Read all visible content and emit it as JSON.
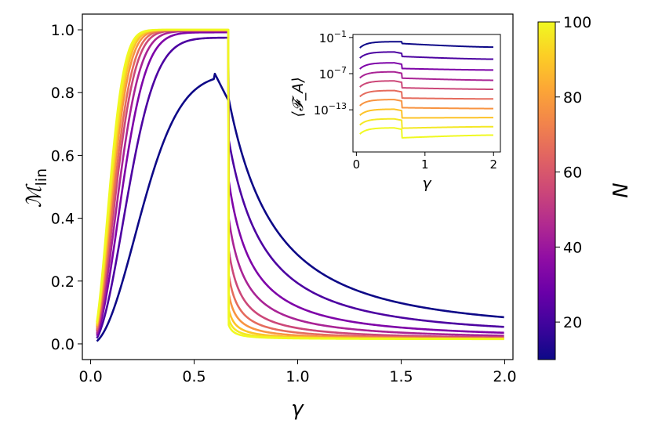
{
  "chart_data": [
    {
      "type": "line",
      "panel": "main",
      "xlabel": "γ",
      "ylabel_main": "ℳ",
      "ylabel_sub": "lin",
      "xlim": [
        -0.04,
        2.04
      ],
      "ylim": [
        -0.05,
        1.05
      ],
      "xticks": [
        0.0,
        0.5,
        1.0,
        1.5,
        2.0
      ],
      "xtick_labels": [
        "0.0",
        "0.5",
        "1.0",
        "1.5",
        "2.0"
      ],
      "yticks": [
        0.0,
        0.2,
        0.4,
        0.6,
        0.8,
        1.0
      ],
      "ytick_labels": [
        "0.0",
        "0.2",
        "0.4",
        "0.6",
        "0.8",
        "1.0"
      ],
      "critical_gamma": 0.667,
      "series": [
        {
          "name": "N=10",
          "peak": 0.86,
          "rise_width": 0.3,
          "drop_to": 0.78,
          "decay_rate": 4.5,
          "tail": 0.035
        },
        {
          "name": "N=20",
          "peak": 0.975,
          "rise_width": 0.22,
          "drop_to": 0.65,
          "decay_rate": 6.0,
          "tail": 0.022
        },
        {
          "name": "N=30",
          "peak": 0.992,
          "rise_width": 0.185,
          "drop_to": 0.52,
          "decay_rate": 9.0,
          "tail": 0.018
        },
        {
          "name": "N=40",
          "peak": 0.996,
          "rise_width": 0.165,
          "drop_to": 0.4,
          "decay_rate": 12.0,
          "tail": 0.016
        },
        {
          "name": "N=50",
          "peak": 0.998,
          "rise_width": 0.15,
          "drop_to": 0.3,
          "decay_rate": 16.0,
          "tail": 0.015
        },
        {
          "name": "N=60",
          "peak": 0.999,
          "rise_width": 0.14,
          "drop_to": 0.22,
          "decay_rate": 20.0,
          "tail": 0.015
        },
        {
          "name": "N=70",
          "peak": 0.999,
          "rise_width": 0.13,
          "drop_to": 0.16,
          "decay_rate": 25.0,
          "tail": 0.015
        },
        {
          "name": "N=80",
          "peak": 1.0,
          "rise_width": 0.123,
          "drop_to": 0.11,
          "decay_rate": 30.0,
          "tail": 0.015
        },
        {
          "name": "N=90",
          "peak": 1.0,
          "rise_width": 0.117,
          "drop_to": 0.08,
          "decay_rate": 35.0,
          "tail": 0.015
        },
        {
          "name": "N=100",
          "peak": 1.0,
          "rise_width": 0.112,
          "drop_to": 0.06,
          "decay_rate": 40.0,
          "tail": 0.015
        }
      ]
    },
    {
      "type": "line",
      "panel": "inset",
      "xlabel": "γ",
      "ylabel": "⟨𝓕_A⟩",
      "yscale": "log",
      "xlim": [
        -0.05,
        2.1
      ],
      "log10_ylim": [
        -20,
        -0.5
      ],
      "xticks": [
        0,
        1,
        2
      ],
      "xtick_labels": [
        "0",
        "1",
        "2"
      ],
      "ytick_log10": [
        -1,
        -7,
        -13
      ],
      "ytick_bases": [
        "10",
        "10",
        "10"
      ],
      "ytick_exponents": [
        "−1",
        "−7",
        "−13"
      ],
      "series": [
        {
          "name": "N=10",
          "peak_log10": -1.7,
          "jump": 0.0,
          "end_log10": -2.6
        },
        {
          "name": "N=20",
          "peak_log10": -3.4,
          "jump": 0.5,
          "end_log10": -4.6
        },
        {
          "name": "N=30",
          "peak_log10": -5.2,
          "jump": 0.7,
          "end_log10": -6.4
        },
        {
          "name": "N=40",
          "peak_log10": -6.7,
          "jump": 0.8,
          "end_log10": -8.1
        },
        {
          "name": "N=50",
          "peak_log10": -8.2,
          "jump": 0.9,
          "end_log10": -9.6
        },
        {
          "name": "N=60",
          "peak_log10": -9.8,
          "jump": 1.0,
          "end_log10": -11.2
        },
        {
          "name": "N=70",
          "peak_log10": -11.3,
          "jump": 1.1,
          "end_log10": -12.8
        },
        {
          "name": "N=80",
          "peak_log10": -12.9,
          "jump": 1.2,
          "end_log10": -14.3
        },
        {
          "name": "N=90",
          "peak_log10": -14.5,
          "jump": 1.3,
          "end_log10": -15.8
        },
        {
          "name": "N=100",
          "peak_log10": -16.0,
          "jump": 1.4,
          "end_log10": -17.2
        }
      ]
    }
  ],
  "colorbar": {
    "label": "N",
    "min": 10,
    "max": 100,
    "ticks": [
      20,
      40,
      60,
      80,
      100
    ],
    "tick_labels": [
      "20",
      "40",
      "60",
      "80",
      "100"
    ],
    "colormap": [
      "#0d0887",
      "#3e049c",
      "#6a00a8",
      "#900da4",
      "#b12a90",
      "#cc4778",
      "#e16462",
      "#f2844b",
      "#fca636",
      "#fcce25",
      "#f0f921"
    ]
  },
  "series_colors": [
    "#0d0887",
    "#4c02a1",
    "#7e03a8",
    "#a92395",
    "#cc4778",
    "#e56b5d",
    "#f89441",
    "#fdc328",
    "#f4e825",
    "#f0f921"
  ]
}
